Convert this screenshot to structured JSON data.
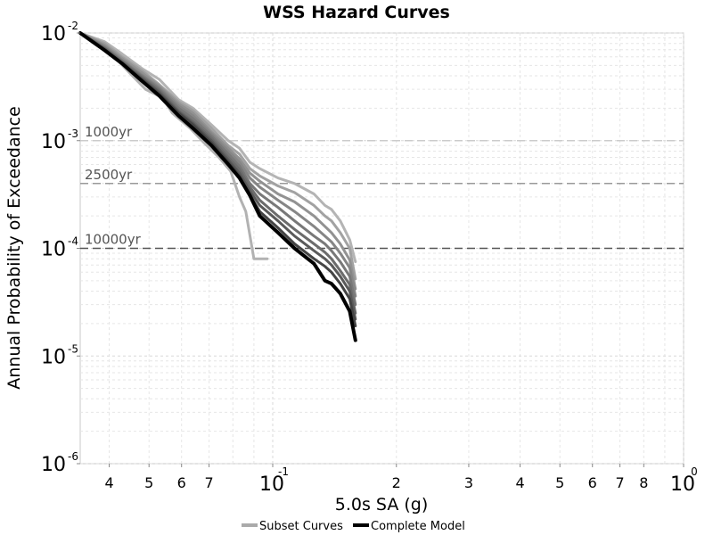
{
  "chart_data": {
    "type": "line",
    "title": "WSS Hazard Curves",
    "xlabel": "5.0s SA (g)",
    "ylabel": "Annual Probability of Exceedance",
    "x_scale": "log",
    "y_scale": "log",
    "xlim": [
      0.034,
      1.0
    ],
    "ylim": [
      1e-06,
      0.01
    ],
    "grid": true,
    "x_ticks": [
      {
        "value": 0.04,
        "label": "4"
      },
      {
        "value": 0.05,
        "label": "5"
      },
      {
        "value": 0.06,
        "label": "6"
      },
      {
        "value": 0.07,
        "label": "7"
      },
      {
        "value": 0.1,
        "label": "10",
        "exponent": "-1"
      },
      {
        "value": 0.2,
        "label": "2"
      },
      {
        "value": 0.3,
        "label": "3"
      },
      {
        "value": 0.4,
        "label": "4"
      },
      {
        "value": 0.5,
        "label": "5"
      },
      {
        "value": 0.6,
        "label": "6"
      },
      {
        "value": 0.7,
        "label": "7"
      },
      {
        "value": 0.8,
        "label": "8"
      },
      {
        "value": 1.0,
        "label": "10",
        "exponent": "0"
      }
    ],
    "y_ticks": [
      {
        "value": 0.01,
        "label": "10",
        "exponent": "-2"
      },
      {
        "value": 0.001,
        "label": "10",
        "exponent": "-3"
      },
      {
        "value": 0.0001,
        "label": "10",
        "exponent": "-4"
      },
      {
        "value": 1e-05,
        "label": "10",
        "exponent": "-5"
      },
      {
        "value": 1e-06,
        "label": "10",
        "exponent": "-6"
      }
    ],
    "reference_lines": [
      {
        "label": "1000yr",
        "y": 0.001,
        "color": "#cccccc"
      },
      {
        "label": "2500yr",
        "y": 0.0004,
        "color": "#999999"
      },
      {
        "label": "10000yr",
        "y": 0.0001,
        "color": "#555555"
      }
    ],
    "legend": {
      "position": "bottom-center",
      "items": [
        {
          "name": "Subset Curves",
          "color": "#aaaaaa"
        },
        {
          "name": "Complete Model",
          "color": "#000000"
        }
      ]
    },
    "series": [
      {
        "color": "#b2b2b2",
        "width": 3,
        "points": [
          [
            0.034,
            0.01
          ],
          [
            0.037,
            0.0083
          ],
          [
            0.041,
            0.0061
          ],
          [
            0.045,
            0.0042
          ],
          [
            0.049,
            0.003
          ],
          [
            0.054,
            0.0025
          ],
          [
            0.057,
            0.0018
          ],
          [
            0.063,
            0.0013
          ],
          [
            0.068,
            0.00096
          ],
          [
            0.074,
            0.0007
          ],
          [
            0.079,
            0.00052
          ],
          [
            0.083,
            0.0003
          ],
          [
            0.086,
            0.00022
          ],
          [
            0.09,
            8e-05
          ],
          [
            0.097,
            8e-05
          ]
        ]
      },
      {
        "color": "#b4b4b4",
        "width": 3,
        "points": [
          [
            0.034,
            0.01
          ],
          [
            0.039,
            0.0083
          ],
          [
            0.043,
            0.0064
          ],
          [
            0.048,
            0.0047
          ],
          [
            0.053,
            0.0037
          ],
          [
            0.059,
            0.0024
          ],
          [
            0.064,
            0.002
          ],
          [
            0.071,
            0.0014
          ],
          [
            0.078,
            0.001
          ],
          [
            0.083,
            0.00085
          ],
          [
            0.088,
            0.00063
          ],
          [
            0.093,
            0.00055
          ],
          [
            0.103,
            0.00045
          ],
          [
            0.113,
            0.0004
          ],
          [
            0.126,
            0.00032
          ],
          [
            0.134,
            0.00025
          ],
          [
            0.139,
            0.00023
          ],
          [
            0.146,
            0.00018
          ],
          [
            0.154,
            0.00012
          ],
          [
            0.159,
            7.5e-05
          ]
        ]
      },
      {
        "color": "#a2a2a2",
        "width": 3,
        "points": [
          [
            0.034,
            0.01
          ],
          [
            0.039,
            0.008
          ],
          [
            0.043,
            0.006
          ],
          [
            0.048,
            0.0045
          ],
          [
            0.053,
            0.0033
          ],
          [
            0.059,
            0.0023
          ],
          [
            0.064,
            0.0019
          ],
          [
            0.071,
            0.0013
          ],
          [
            0.078,
            0.0009
          ],
          [
            0.083,
            0.00075
          ],
          [
            0.088,
            0.00055
          ],
          [
            0.093,
            0.00047
          ],
          [
            0.103,
            0.00038
          ],
          [
            0.113,
            0.00033
          ],
          [
            0.126,
            0.00025
          ],
          [
            0.134,
            0.0002
          ],
          [
            0.139,
            0.00018
          ],
          [
            0.146,
            0.00014
          ],
          [
            0.154,
            0.0001
          ],
          [
            0.159,
            5.2e-05
          ]
        ]
      },
      {
        "color": "#929292",
        "width": 3,
        "points": [
          [
            0.034,
            0.01
          ],
          [
            0.039,
            0.0077
          ],
          [
            0.043,
            0.0058
          ],
          [
            0.048,
            0.0043
          ],
          [
            0.053,
            0.0032
          ],
          [
            0.059,
            0.0022
          ],
          [
            0.064,
            0.0018
          ],
          [
            0.071,
            0.0012
          ],
          [
            0.078,
            0.00085
          ],
          [
            0.083,
            0.00068
          ],
          [
            0.088,
            0.0005
          ],
          [
            0.093,
            0.00042
          ],
          [
            0.103,
            0.00032
          ],
          [
            0.113,
            0.00027
          ],
          [
            0.126,
            0.0002
          ],
          [
            0.134,
            0.00016
          ],
          [
            0.139,
            0.00014
          ],
          [
            0.146,
            0.00011
          ],
          [
            0.154,
            7.8e-05
          ],
          [
            0.159,
            4.2e-05
          ]
        ]
      },
      {
        "color": "#868686",
        "width": 3,
        "points": [
          [
            0.034,
            0.01
          ],
          [
            0.039,
            0.0075
          ],
          [
            0.043,
            0.0056
          ],
          [
            0.048,
            0.0041
          ],
          [
            0.053,
            0.0031
          ],
          [
            0.059,
            0.0021
          ],
          [
            0.064,
            0.0017
          ],
          [
            0.071,
            0.00115
          ],
          [
            0.078,
            0.0008
          ],
          [
            0.083,
            0.00063
          ],
          [
            0.088,
            0.00045
          ],
          [
            0.093,
            0.00037
          ],
          [
            0.103,
            0.00028
          ],
          [
            0.113,
            0.00022
          ],
          [
            0.126,
            0.00016
          ],
          [
            0.134,
            0.00013
          ],
          [
            0.139,
            0.000115
          ],
          [
            0.146,
            9e-05
          ],
          [
            0.154,
            6.6e-05
          ],
          [
            0.159,
            3.6e-05
          ]
        ]
      },
      {
        "color": "#787878",
        "width": 3,
        "points": [
          [
            0.034,
            0.01
          ],
          [
            0.039,
            0.0073
          ],
          [
            0.043,
            0.0055
          ],
          [
            0.048,
            0.004
          ],
          [
            0.053,
            0.003
          ],
          [
            0.059,
            0.002
          ],
          [
            0.064,
            0.0016
          ],
          [
            0.071,
            0.0011
          ],
          [
            0.078,
            0.00075
          ],
          [
            0.083,
            0.00058
          ],
          [
            0.088,
            0.0004
          ],
          [
            0.093,
            0.00032
          ],
          [
            0.103,
            0.00024
          ],
          [
            0.113,
            0.00018
          ],
          [
            0.126,
            0.00013
          ],
          [
            0.134,
            0.00011
          ],
          [
            0.139,
            9.5e-05
          ],
          [
            0.146,
            7.5e-05
          ],
          [
            0.154,
            5.5e-05
          ],
          [
            0.159,
            3e-05
          ]
        ]
      },
      {
        "color": "#6c6c6c",
        "width": 3,
        "points": [
          [
            0.034,
            0.01
          ],
          [
            0.039,
            0.0072
          ],
          [
            0.043,
            0.0054
          ],
          [
            0.048,
            0.0039
          ],
          [
            0.053,
            0.0029
          ],
          [
            0.059,
            0.0019
          ],
          [
            0.064,
            0.0015
          ],
          [
            0.071,
            0.00105
          ],
          [
            0.078,
            0.0007
          ],
          [
            0.083,
            0.00054
          ],
          [
            0.088,
            0.00037
          ],
          [
            0.093,
            0.00028
          ],
          [
            0.103,
            0.0002
          ],
          [
            0.113,
            0.00015
          ],
          [
            0.126,
            0.00011
          ],
          [
            0.134,
            9.2e-05
          ],
          [
            0.139,
            8e-05
          ],
          [
            0.146,
            6.2e-05
          ],
          [
            0.154,
            4.6e-05
          ],
          [
            0.159,
            2.5e-05
          ]
        ]
      },
      {
        "color": "#5a5a5a",
        "width": 3,
        "points": [
          [
            0.034,
            0.01
          ],
          [
            0.039,
            0.0071
          ],
          [
            0.043,
            0.0053
          ],
          [
            0.048,
            0.0038
          ],
          [
            0.053,
            0.0028
          ],
          [
            0.059,
            0.00185
          ],
          [
            0.064,
            0.00145
          ],
          [
            0.071,
            0.001
          ],
          [
            0.078,
            0.00066
          ],
          [
            0.083,
            0.0005
          ],
          [
            0.088,
            0.00034
          ],
          [
            0.093,
            0.00025
          ],
          [
            0.103,
            0.00018
          ],
          [
            0.113,
            0.00013
          ],
          [
            0.126,
            9.5e-05
          ],
          [
            0.134,
            8e-05
          ],
          [
            0.139,
            7e-05
          ],
          [
            0.146,
            5.5e-05
          ],
          [
            0.154,
            4e-05
          ],
          [
            0.159,
            2.2e-05
          ]
        ]
      },
      {
        "color": "#444444",
        "width": 3,
        "points": [
          [
            0.034,
            0.01
          ],
          [
            0.039,
            0.007
          ],
          [
            0.043,
            0.0052
          ],
          [
            0.048,
            0.0037
          ],
          [
            0.053,
            0.0027
          ],
          [
            0.059,
            0.0018
          ],
          [
            0.064,
            0.0014
          ],
          [
            0.071,
            0.00095
          ],
          [
            0.078,
            0.00063
          ],
          [
            0.083,
            0.00047
          ],
          [
            0.088,
            0.00031
          ],
          [
            0.093,
            0.00022
          ],
          [
            0.103,
            0.000155
          ],
          [
            0.113,
            0.00011
          ],
          [
            0.126,
            8e-05
          ],
          [
            0.134,
            6.8e-05
          ],
          [
            0.139,
            6e-05
          ],
          [
            0.146,
            4.7e-05
          ],
          [
            0.154,
            3.4e-05
          ],
          [
            0.159,
            1.9e-05
          ]
        ]
      },
      {
        "color": "#000000",
        "width": 4,
        "points": [
          [
            0.034,
            0.01
          ],
          [
            0.039,
            0.0069
          ],
          [
            0.043,
            0.0052
          ],
          [
            0.048,
            0.0036
          ],
          [
            0.053,
            0.0026
          ],
          [
            0.059,
            0.0017
          ],
          [
            0.064,
            0.0013
          ],
          [
            0.071,
            0.0009
          ],
          [
            0.078,
            0.0006
          ],
          [
            0.083,
            0.00045
          ],
          [
            0.088,
            0.00031
          ],
          [
            0.093,
            0.0002
          ],
          [
            0.103,
            0.00014
          ],
          [
            0.113,
            0.0001
          ],
          [
            0.126,
            7.2e-05
          ],
          [
            0.134,
            5e-05
          ],
          [
            0.139,
            4.7e-05
          ],
          [
            0.146,
            3.8e-05
          ],
          [
            0.154,
            2.6e-05
          ],
          [
            0.159,
            1.4e-05
          ]
        ]
      }
    ]
  }
}
